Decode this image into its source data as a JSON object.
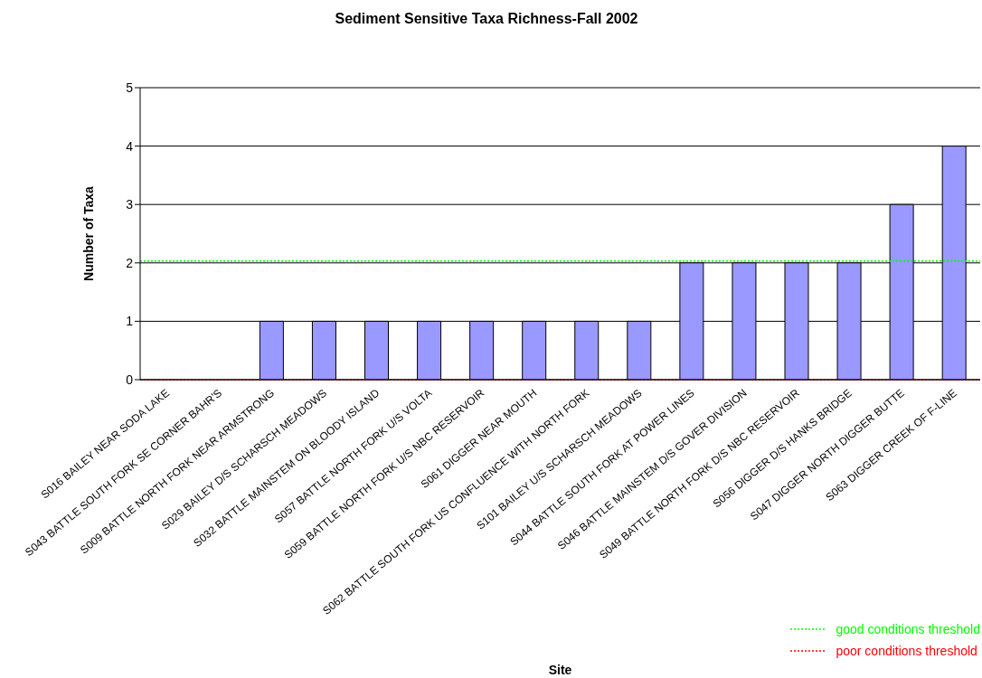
{
  "chart_data": {
    "type": "bar",
    "title": "Sediment Sensitive Taxa Richness-Fall 2002",
    "xlabel": "Site",
    "ylabel": "Number of Taxa",
    "categories": [
      "S016 BAILEY NEAR SODA LAKE",
      "S043 BATTLE SOUTH FORK SE CORNER BAHR'S",
      "S009 BATTLE NORTH FORK NEAR ARMSTRONG",
      "S029 BAILEY D/S SCHARSCH MEADOWS",
      "S032 BATTLE MAINSTEM ON BLOODY ISLAND",
      "S057 BATTLE NORTH FORK U/S VOLTA",
      "S059 BATTLE NORTH FORK U/S NBC RESERVOIR",
      "S061 DIGGER NEAR MOUTH",
      "S062 BATTLE SOUTH FORK US CONFLUENCE WITH NORTH FORK",
      "S101 BAILEY U/S SCHARSCH MEADOWS",
      "S044 BATTLE SOUTH FORK AT POWER LINES",
      "S046 BATTLE MAINSTEM D/S GOVER DIVISION",
      "S049 BATTLE NORTH FORK D/S NBC RESERVOIR",
      "S056 DIGGER D/S HANKS BRIDGE",
      "S047 DIGGER NORTH DIGGER BUTTE",
      "S063 DIGGER CREEK OF F-LINE"
    ],
    "values": [
      0,
      0,
      1,
      1,
      1,
      1,
      1,
      1,
      1,
      1,
      2,
      2,
      2,
      2,
      3,
      4
    ],
    "color": "#9999ff",
    "ylim": [
      0,
      5
    ],
    "yticks": [
      0,
      1,
      2,
      3,
      4,
      5
    ],
    "grid": "y",
    "legend": "bottom right",
    "ref_lines": [
      {
        "axis": "y",
        "value": 2.03,
        "label": "good conditions threshold",
        "color": "#00ff00",
        "line_style": "dotted"
      },
      {
        "axis": "y",
        "value": 0,
        "label": "poor conditions threshold",
        "color": "#ff0000",
        "line_style": "dotted"
      }
    ]
  }
}
